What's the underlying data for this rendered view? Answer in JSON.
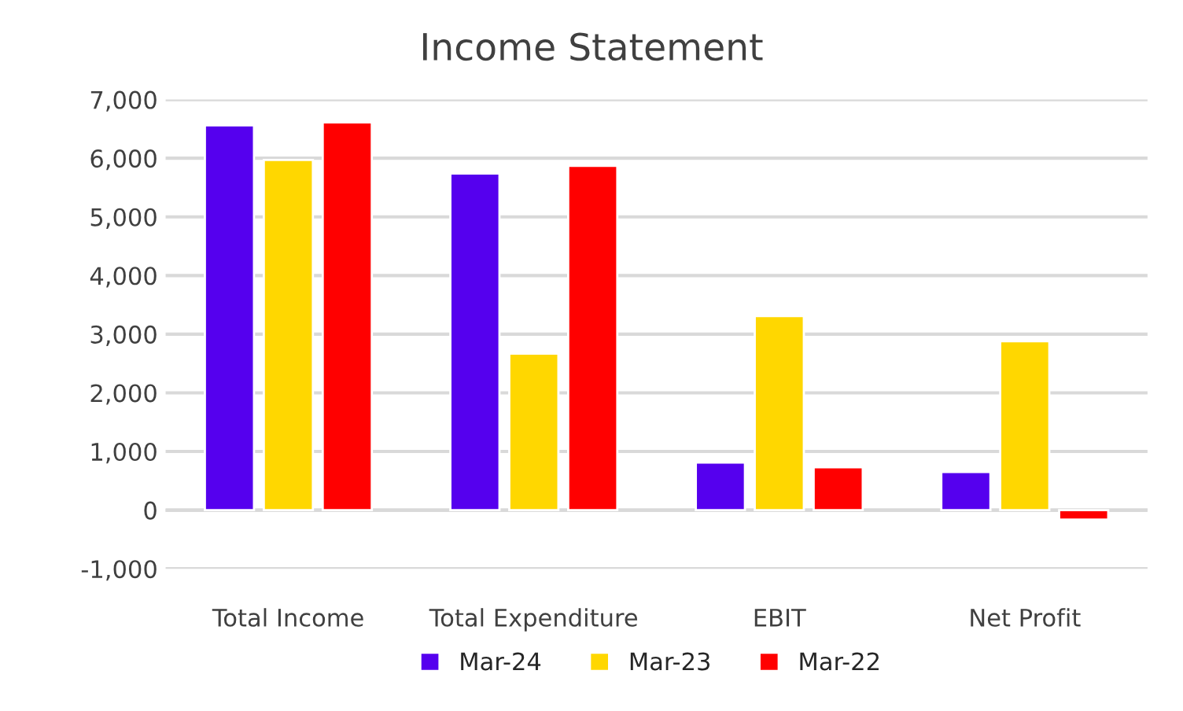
{
  "chart_data": {
    "type": "bar",
    "title": "Income Statement",
    "categories": [
      "Total Income",
      "Total Expenditure",
      "EBIT",
      "Net Profit"
    ],
    "series": [
      {
        "name": "Mar-24",
        "color": "#5500ee",
        "values": [
          6560,
          5740,
          810,
          650
        ]
      },
      {
        "name": "Mar-23",
        "color": "#ffd700",
        "values": [
          5970,
          2670,
          3310,
          2880
        ]
      },
      {
        "name": "Mar-22",
        "color": "#ff0000",
        "values": [
          6610,
          5870,
          730,
          -160
        ]
      }
    ],
    "ylim": [
      -1000,
      7000
    ],
    "yticks": [
      {
        "value": -1000,
        "label": "-1,000"
      },
      {
        "value": 0,
        "label": "0"
      },
      {
        "value": 1000,
        "label": "1,000"
      },
      {
        "value": 2000,
        "label": "2,000"
      },
      {
        "value": 3000,
        "label": "3,000"
      },
      {
        "value": 4000,
        "label": "4,000"
      },
      {
        "value": 5000,
        "label": "5,000"
      },
      {
        "value": 6000,
        "label": "6,000"
      },
      {
        "value": 7000,
        "label": "7,000"
      }
    ],
    "grid": "y",
    "legend": "bottom"
  }
}
